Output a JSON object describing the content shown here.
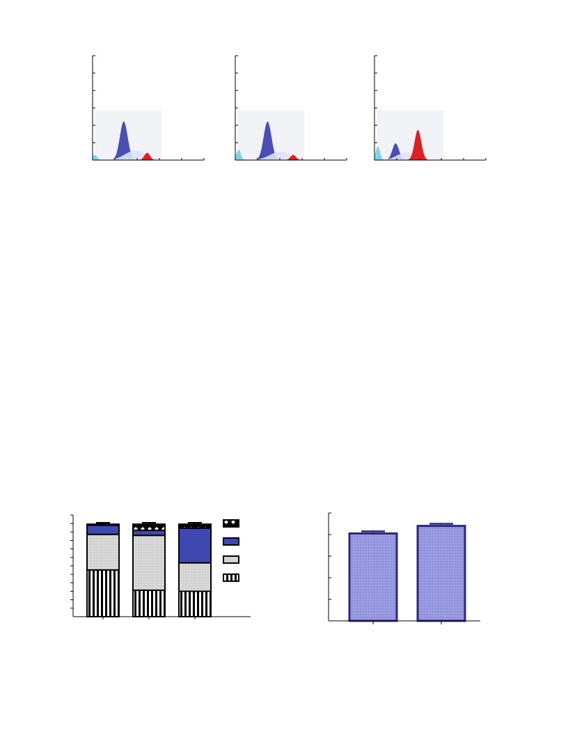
{
  "colors": {
    "axis": "#000000",
    "g1": "#4a4fb8",
    "s_phase": "#dfe3f5",
    "g2": "#e02020",
    "subg1": "#7fd4e8",
    "bg_shade": "#f2f3f6",
    "stack_blue": "#3f48b0",
    "stack_grey": "#d8d8d8",
    "bar_fill": "#9a9be0",
    "bar_edge": "#2a2a7a"
  },
  "chart_data": [
    {
      "type": "area",
      "yticks": 6,
      "xticks": 6,
      "peaks": [
        {
          "series": "subG1",
          "center": 0.02,
          "height": 0.05,
          "width": 0.02
        },
        {
          "series": "G1",
          "center": 0.28,
          "height": 0.37,
          "width": 0.035
        },
        {
          "series": "S",
          "center": 0.38,
          "height": 0.09,
          "width": 0.09
        },
        {
          "series": "G2",
          "center": 0.49,
          "height": 0.07,
          "width": 0.025
        }
      ]
    },
    {
      "type": "area",
      "yticks": 6,
      "xticks": 6,
      "peaks": [
        {
          "series": "subG1",
          "center": 0.03,
          "height": 0.1,
          "width": 0.02
        },
        {
          "series": "G1",
          "center": 0.29,
          "height": 0.37,
          "width": 0.035
        },
        {
          "series": "S",
          "center": 0.4,
          "height": 0.08,
          "width": 0.09
        },
        {
          "series": "G2",
          "center": 0.52,
          "height": 0.05,
          "width": 0.025
        }
      ]
    },
    {
      "type": "area",
      "yticks": 6,
      "xticks": 6,
      "peaks": [
        {
          "series": "subG1",
          "center": 0.03,
          "height": 0.13,
          "width": 0.02
        },
        {
          "series": "G1",
          "center": 0.19,
          "height": 0.16,
          "width": 0.03
        },
        {
          "series": "S",
          "center": 0.28,
          "height": 0.07,
          "width": 0.08
        },
        {
          "series": "G2",
          "center": 0.39,
          "height": 0.29,
          "width": 0.03
        }
      ]
    },
    {
      "type": "bar",
      "stacked": true,
      "categories": [
        "",
        "",
        ""
      ],
      "ylim": [
        0,
        100
      ],
      "yticks": 12,
      "series": [
        {
          "key": "striped",
          "values": [
            46,
            26,
            25
          ],
          "errors": [
            1,
            1,
            1
          ]
        },
        {
          "key": "dotted_grey",
          "values": [
            35,
            54,
            28
          ],
          "errors": [
            1,
            1,
            1
          ]
        },
        {
          "key": "blue",
          "values": [
            9,
            5,
            34
          ],
          "errors": [
            1,
            1,
            1
          ]
        },
        {
          "key": "diamond",
          "values": [
            1,
            6,
            4
          ],
          "errors": [
            1.5,
            1.5,
            1.5
          ]
        }
      ]
    },
    {
      "type": "bar",
      "categories": [
        "",
        ""
      ],
      "ylim": [
        0,
        100
      ],
      "yticks": 5,
      "values": [
        81,
        88
      ],
      "errors": [
        2,
        2
      ]
    }
  ]
}
